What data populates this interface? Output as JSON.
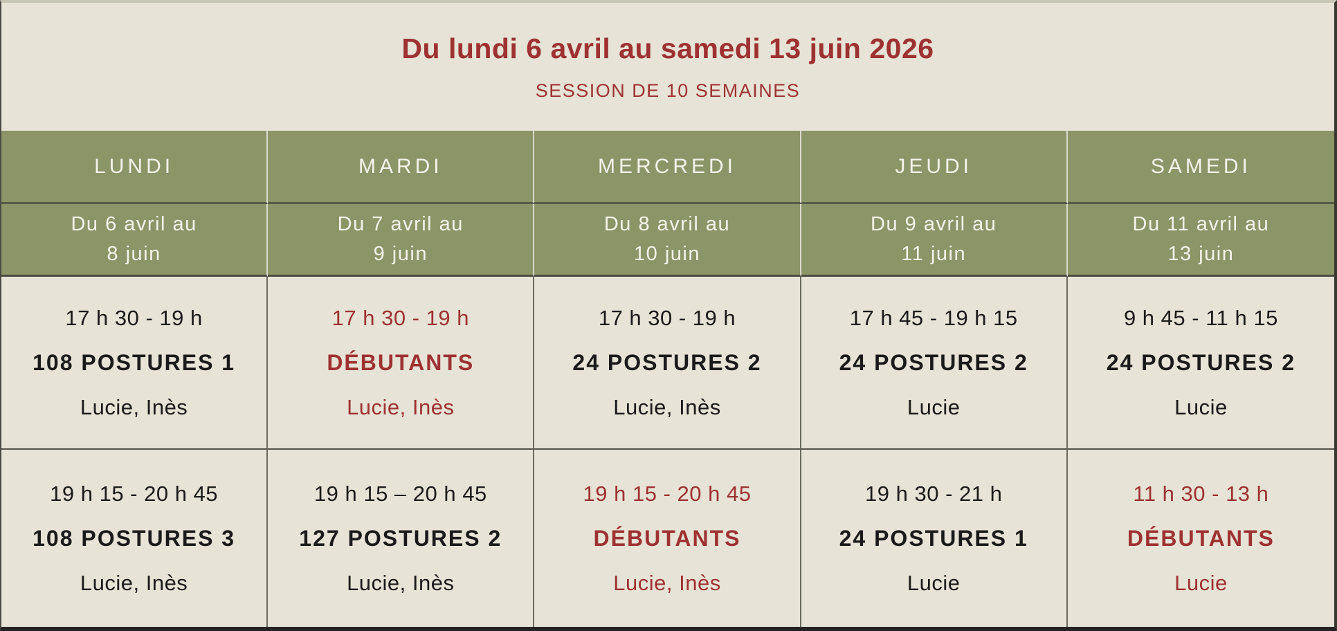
{
  "header": {
    "title": "Du lundi 6 avril au samedi 13 juin 2026",
    "subtitle": "SESSION DE 10 SEMAINES"
  },
  "colors": {
    "accent_red": "#9e3132",
    "header_green": "#8b9568",
    "background_beige": "#e7e3d6",
    "header_text_cream": "#f5f3ea",
    "body_text": "#1a1a1a"
  },
  "columns": [
    {
      "day": "LUNDI",
      "date_line1": "Du 6 avril au",
      "date_line2": "8 juin",
      "sessions": [
        {
          "time": "17 h 30 - 19 h",
          "course": "108 POSTURES 1",
          "teachers": "Lucie, Inès",
          "highlighted": false
        },
        {
          "time": "19 h 15 - 20 h 45",
          "course": "108 POSTURES 3",
          "teachers": "Lucie, Inès",
          "highlighted": false
        }
      ]
    },
    {
      "day": "MARDI",
      "date_line1": "Du 7 avril au",
      "date_line2": "9 juin",
      "sessions": [
        {
          "time": "17 h 30 - 19 h",
          "course": "DÉBUTANTS",
          "teachers": "Lucie, Inès",
          "highlighted": true
        },
        {
          "time": "19 h 15 – 20 h 45",
          "course": "127 POSTURES 2",
          "teachers": "Lucie, Inès",
          "highlighted": false
        }
      ]
    },
    {
      "day": "MERCREDI",
      "date_line1": "Du 8 avril au",
      "date_line2": "10 juin",
      "sessions": [
        {
          "time": "17 h 30 - 19 h",
          "course": "24 POSTURES 2",
          "teachers": "Lucie, Inès",
          "highlighted": false
        },
        {
          "time": "19 h 15 - 20 h 45",
          "course": "DÉBUTANTS",
          "teachers": "Lucie, Inès",
          "highlighted": true
        }
      ]
    },
    {
      "day": "JEUDI",
      "date_line1": "Du 9 avril au",
      "date_line2": "11 juin",
      "sessions": [
        {
          "time": "17 h 45 - 19 h 15",
          "course": "24 POSTURES 2",
          "teachers": "Lucie",
          "highlighted": false
        },
        {
          "time": "19 h 30 - 21 h",
          "course": "24 POSTURES 1",
          "teachers": "Lucie",
          "highlighted": false
        }
      ]
    },
    {
      "day": "SAMEDI",
      "date_line1": "Du 11 avril au",
      "date_line2": "13 juin",
      "sessions": [
        {
          "time": "9 h 45 - 11 h 15",
          "course": "24 POSTURES 2",
          "teachers": "Lucie",
          "highlighted": false
        },
        {
          "time": "11 h 30 - 13 h",
          "course": "DÉBUTANTS",
          "teachers": "Lucie",
          "highlighted": true
        }
      ]
    }
  ]
}
